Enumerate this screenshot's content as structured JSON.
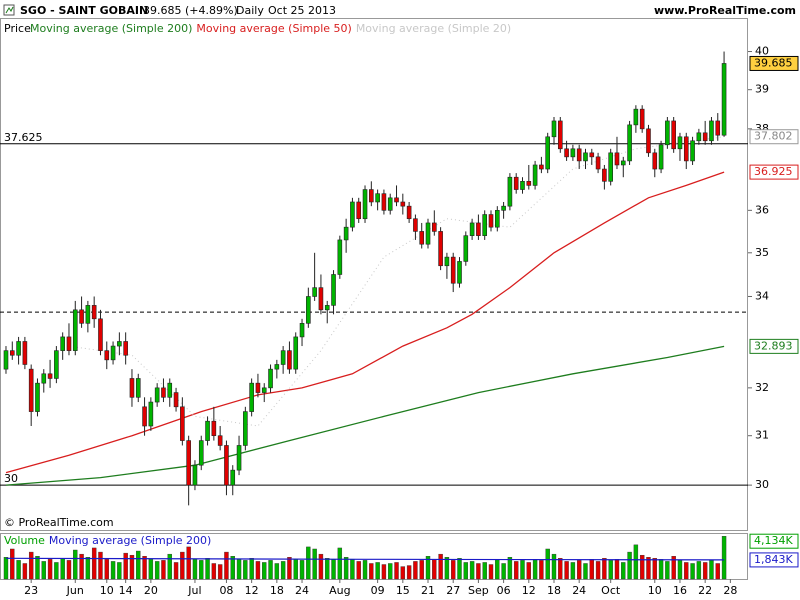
{
  "chart_data": {
    "type": "candlestick",
    "title": "SGO - SAINT GOBAIN",
    "quote": "39.685 (+4.89%)",
    "period": "Daily",
    "date": "Oct 25 2013",
    "source": "www.ProRealTime.com",
    "copyright": "© ProRealTime.com",
    "price_label": "Price",
    "log_scale": true,
    "colors": {
      "up": "#00b400",
      "down": "#e00000",
      "last": "#ffd040"
    },
    "ohlc": [
      [
        32.4,
        32.9,
        32.3,
        32.8
      ],
      [
        32.8,
        33.0,
        32.6,
        32.7
      ],
      [
        32.7,
        33.1,
        32.5,
        33.0
      ],
      [
        33.0,
        33.1,
        32.4,
        32.5
      ],
      [
        32.4,
        32.5,
        31.2,
        31.5
      ],
      [
        31.5,
        32.2,
        31.4,
        32.1
      ],
      [
        32.1,
        32.4,
        31.9,
        32.3
      ],
      [
        32.3,
        32.6,
        32.0,
        32.2
      ],
      [
        32.2,
        32.9,
        32.1,
        32.8
      ],
      [
        32.8,
        33.2,
        32.6,
        33.1
      ],
      [
        33.1,
        33.4,
        32.7,
        32.8
      ],
      [
        32.8,
        33.9,
        32.7,
        33.7
      ],
      [
        33.7,
        34.0,
        33.3,
        33.4
      ],
      [
        33.4,
        33.9,
        33.2,
        33.8
      ],
      [
        33.8,
        34.0,
        33.3,
        33.5
      ],
      [
        33.5,
        33.7,
        32.7,
        32.8
      ],
      [
        32.8,
        33.0,
        32.4,
        32.6
      ],
      [
        32.6,
        33.0,
        32.5,
        32.9
      ],
      [
        32.9,
        33.2,
        32.7,
        33.0
      ],
      [
        33.0,
        33.2,
        32.5,
        32.7
      ],
      [
        32.2,
        32.4,
        31.6,
        31.8
      ],
      [
        31.8,
        32.3,
        31.7,
        32.2
      ],
      [
        31.6,
        31.8,
        31.0,
        31.2
      ],
      [
        31.2,
        31.8,
        31.1,
        31.7
      ],
      [
        31.7,
        32.1,
        31.6,
        32.0
      ],
      [
        32.0,
        32.2,
        31.7,
        31.8
      ],
      [
        31.8,
        32.2,
        31.6,
        32.1
      ],
      [
        31.9,
        32.0,
        31.5,
        31.6
      ],
      [
        31.6,
        31.8,
        30.8,
        30.9
      ],
      [
        30.9,
        31.0,
        29.6,
        30.0
      ],
      [
        30.0,
        30.5,
        29.9,
        30.4
      ],
      [
        30.4,
        31.0,
        30.3,
        30.9
      ],
      [
        30.9,
        31.4,
        30.8,
        31.3
      ],
      [
        31.3,
        31.6,
        30.9,
        31.0
      ],
      [
        31.0,
        31.2,
        30.7,
        30.8
      ],
      [
        30.8,
        30.9,
        29.8,
        30.0
      ],
      [
        30.0,
        30.4,
        29.8,
        30.3
      ],
      [
        30.3,
        31.0,
        30.2,
        30.8
      ],
      [
        30.8,
        31.6,
        30.7,
        31.5
      ],
      [
        31.5,
        32.2,
        31.4,
        32.1
      ],
      [
        32.1,
        32.3,
        31.8,
        31.9
      ],
      [
        31.9,
        32.1,
        31.7,
        32.0
      ],
      [
        32.0,
        32.5,
        31.9,
        32.4
      ],
      [
        32.4,
        32.6,
        32.2,
        32.5
      ],
      [
        32.5,
        32.9,
        32.3,
        32.8
      ],
      [
        32.8,
        33.0,
        32.3,
        32.4
      ],
      [
        32.4,
        33.2,
        32.3,
        33.1
      ],
      [
        33.1,
        33.5,
        32.9,
        33.4
      ],
      [
        33.4,
        34.2,
        33.3,
        34.0
      ],
      [
        34.0,
        35.0,
        33.9,
        34.2
      ],
      [
        34.2,
        34.5,
        33.6,
        33.7
      ],
      [
        33.7,
        33.9,
        33.4,
        33.8
      ],
      [
        33.8,
        34.6,
        33.6,
        34.5
      ],
      [
        34.5,
        35.4,
        34.4,
        35.3
      ],
      [
        35.3,
        35.8,
        35.0,
        35.6
      ],
      [
        35.6,
        36.3,
        35.5,
        36.2
      ],
      [
        36.2,
        36.3,
        35.7,
        35.8
      ],
      [
        35.8,
        36.6,
        35.7,
        36.5
      ],
      [
        36.5,
        36.7,
        36.1,
        36.2
      ],
      [
        36.2,
        36.5,
        36.0,
        36.4
      ],
      [
        36.4,
        36.5,
        35.9,
        36.0
      ],
      [
        36.0,
        36.4,
        35.9,
        36.3
      ],
      [
        36.3,
        36.6,
        36.1,
        36.2
      ],
      [
        36.2,
        36.4,
        35.9,
        36.1
      ],
      [
        36.1,
        36.2,
        35.7,
        35.8
      ],
      [
        35.8,
        35.9,
        35.3,
        35.5
      ],
      [
        35.5,
        35.7,
        35.1,
        35.2
      ],
      [
        35.2,
        35.8,
        35.1,
        35.7
      ],
      [
        35.7,
        36.0,
        35.4,
        35.5
      ],
      [
        35.5,
        35.6,
        34.6,
        34.7
      ],
      [
        34.7,
        35.0,
        34.4,
        34.9
      ],
      [
        34.9,
        35.0,
        34.1,
        34.3
      ],
      [
        34.3,
        34.9,
        34.2,
        34.8
      ],
      [
        34.8,
        35.5,
        34.7,
        35.4
      ],
      [
        35.4,
        35.8,
        35.3,
        35.7
      ],
      [
        35.7,
        35.9,
        35.3,
        35.4
      ],
      [
        35.4,
        36.0,
        35.3,
        35.9
      ],
      [
        35.9,
        36.0,
        35.5,
        35.6
      ],
      [
        35.6,
        36.1,
        35.5,
        36.0
      ],
      [
        36.0,
        36.2,
        35.8,
        36.1
      ],
      [
        36.1,
        36.9,
        36.0,
        36.8
      ],
      [
        36.8,
        36.9,
        36.4,
        36.5
      ],
      [
        36.5,
        36.8,
        36.4,
        36.7
      ],
      [
        36.7,
        37.1,
        36.5,
        36.6
      ],
      [
        36.6,
        37.2,
        36.5,
        37.1
      ],
      [
        37.1,
        37.3,
        36.9,
        37.0
      ],
      [
        37.0,
        37.9,
        36.9,
        37.8
      ],
      [
        37.8,
        38.3,
        37.6,
        38.2
      ],
      [
        38.2,
        38.3,
        37.4,
        37.5
      ],
      [
        37.5,
        37.7,
        37.2,
        37.3
      ],
      [
        37.3,
        37.6,
        37.2,
        37.5
      ],
      [
        37.5,
        37.6,
        37.0,
        37.2
      ],
      [
        37.2,
        37.5,
        37.0,
        37.4
      ],
      [
        37.4,
        37.5,
        37.1,
        37.3
      ],
      [
        37.3,
        37.4,
        36.9,
        37.0
      ],
      [
        37.0,
        37.1,
        36.5,
        36.7
      ],
      [
        36.7,
        37.5,
        36.6,
        37.4
      ],
      [
        37.4,
        37.8,
        37.0,
        37.1
      ],
      [
        37.1,
        37.3,
        36.8,
        37.2
      ],
      [
        37.2,
        38.2,
        37.1,
        38.1
      ],
      [
        38.1,
        38.6,
        37.9,
        38.5
      ],
      [
        38.5,
        38.6,
        37.9,
        38.0
      ],
      [
        38.0,
        38.1,
        37.3,
        37.4
      ],
      [
        37.4,
        37.5,
        36.8,
        37.0
      ],
      [
        37.0,
        37.7,
        36.9,
        37.6
      ],
      [
        37.6,
        38.3,
        37.5,
        38.2
      ],
      [
        38.2,
        38.3,
        37.4,
        37.5
      ],
      [
        37.5,
        37.9,
        37.2,
        37.8
      ],
      [
        37.8,
        37.9,
        37.0,
        37.2
      ],
      [
        37.2,
        37.8,
        37.1,
        37.7
      ],
      [
        37.7,
        38.0,
        37.6,
        37.9
      ],
      [
        37.9,
        38.2,
        37.6,
        37.7
      ],
      [
        37.7,
        38.3,
        37.6,
        38.2
      ],
      [
        38.2,
        38.4,
        37.7,
        37.84
      ],
      [
        37.84,
        40.0,
        37.8,
        39.685
      ]
    ],
    "series": [
      {
        "name": "Moving average (Simple 200)",
        "color": "#1e7d1e",
        "x": [
          0,
          15,
          30,
          45,
          60,
          75,
          90,
          105,
          114
        ],
        "values": [
          30.0,
          30.15,
          30.4,
          30.9,
          31.4,
          31.9,
          32.3,
          32.65,
          32.893
        ]
      },
      {
        "name": "Moving average (Simple 50)",
        "color": "#d81e1e",
        "x": [
          0,
          10,
          20,
          31,
          40,
          47,
          55,
          63,
          70,
          74,
          80,
          87,
          95,
          102,
          108,
          114
        ],
        "values": [
          30.25,
          30.6,
          31.0,
          31.5,
          31.85,
          32.0,
          32.3,
          32.9,
          33.3,
          33.6,
          34.2,
          35.0,
          35.7,
          36.3,
          36.6,
          36.925
        ]
      },
      {
        "name": "Moving average (Simple 20)",
        "color": "#c8c8c8",
        "x": [
          10,
          20,
          30,
          40,
          50,
          60,
          70,
          80,
          90,
          100,
          114
        ],
        "values": [
          32.9,
          32.7,
          31.4,
          31.2,
          32.8,
          34.9,
          35.8,
          35.6,
          37.0,
          37.5,
          37.802
        ]
      }
    ],
    "level_lines": [
      37.625,
      30
    ],
    "dashed_lines": [
      33.65
    ],
    "xlim": [
      -0.95,
      117.8
    ],
    "ylim": [
      29.12,
      40.9
    ],
    "yticks": [
      30,
      31,
      32,
      34,
      35,
      36,
      38,
      39,
      40
    ],
    "xticks": [
      {
        "value": 4,
        "label": "23"
      },
      {
        "value": 11,
        "label": "Jun"
      },
      {
        "value": 16,
        "label": "10"
      },
      {
        "value": 19,
        "label": "14"
      },
      {
        "value": 23,
        "label": "20"
      },
      {
        "value": 30,
        "label": "Jul"
      },
      {
        "value": 35,
        "label": "08"
      },
      {
        "value": 39,
        "label": "12"
      },
      {
        "value": 43,
        "label": "18"
      },
      {
        "value": 47,
        "label": "24"
      },
      {
        "value": 53,
        "label": "Aug"
      },
      {
        "value": 59,
        "label": "09"
      },
      {
        "value": 63,
        "label": "15"
      },
      {
        "value": 67,
        "label": "21"
      },
      {
        "value": 71,
        "label": "27"
      },
      {
        "value": 75,
        "label": "Sep"
      },
      {
        "value": 79,
        "label": "06"
      },
      {
        "value": 83,
        "label": "12"
      },
      {
        "value": 87,
        "label": "18"
      },
      {
        "value": 91,
        "label": "24"
      },
      {
        "value": 96,
        "label": "Oct"
      },
      {
        "value": 103,
        "label": "10"
      },
      {
        "value": 107,
        "label": "16"
      },
      {
        "value": 111,
        "label": "22"
      },
      {
        "value": 115,
        "label": "28"
      }
    ],
    "volume": {
      "name": "Volume",
      "color": "#00a000",
      "ylim": [
        0,
        4250
      ],
      "values": [
        2100,
        2900,
        1800,
        1500,
        2600,
        2200,
        1700,
        1900,
        1600,
        2000,
        1800,
        2800,
        2400,
        2100,
        3000,
        2600,
        1900,
        1700,
        1600,
        2500,
        2300,
        2700,
        2200,
        1900,
        1700,
        1800,
        2400,
        1600,
        2600,
        3100,
        1900,
        1800,
        2000,
        1500,
        1400,
        2600,
        2200,
        1900,
        1800,
        2000,
        1700,
        1600,
        1800,
        1500,
        1700,
        2100,
        1900,
        1800,
        3100,
        2900,
        2400,
        2000,
        1900,
        3000,
        2100,
        1900,
        1700,
        1800,
        1500,
        1600,
        1400,
        1500,
        1600,
        1200,
        1300,
        1700,
        1800,
        2200,
        1900,
        2400,
        2100,
        1800,
        2000,
        1600,
        1700,
        1500,
        1600,
        1400,
        1900,
        1500,
        2100,
        1700,
        1800,
        1600,
        1900,
        1800,
        2900,
        2400,
        2000,
        1700,
        1600,
        1800,
        1500,
        1900,
        1700,
        2000,
        1800,
        1900,
        1600,
        2600,
        3300,
        2300,
        2100,
        2000,
        1900,
        1700,
        2200,
        1800,
        1600,
        1500,
        1700,
        1600,
        1800,
        1500,
        4134
      ],
      "last_label": "4,134K",
      "average": {
        "name": "Moving average (Simple 200)",
        "color": "#1a1ac8",
        "x": [
          0,
          57,
          114
        ],
        "values": [
          2000,
          1900,
          1843
        ],
        "last_label": "1,843K"
      }
    }
  }
}
